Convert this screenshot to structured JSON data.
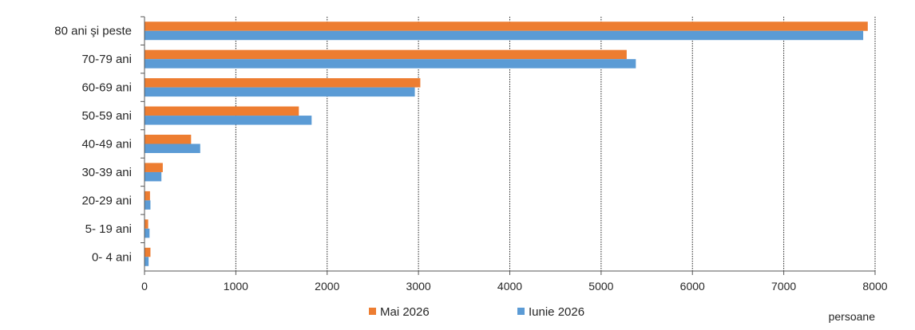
{
  "chart_data": {
    "type": "bar",
    "orientation": "horizontal",
    "categories": [
      "80 ani şi peste",
      "70-79 ani",
      "60-69 ani",
      "50-59 ani",
      "40-49 ani",
      "30-39 ani",
      "20-29 ani",
      "5- 19 ani",
      "0- 4 ani"
    ],
    "series": [
      {
        "name": "Mai 2026",
        "color": "#ED7D31",
        "values": [
          7920,
          5280,
          3020,
          1690,
          510,
          200,
          60,
          40,
          65
        ]
      },
      {
        "name": "Iunie 2026",
        "color": "#5B9BD5",
        "values": [
          7870,
          5380,
          2960,
          1830,
          610,
          185,
          65,
          55,
          45
        ]
      }
    ],
    "xlim": [
      0,
      8000
    ],
    "xticks": [
      0,
      1000,
      2000,
      3000,
      4000,
      5000,
      6000,
      7000,
      8000
    ],
    "xlabel": "persoane",
    "grid": "vertical dotted",
    "legend": "bottom"
  }
}
